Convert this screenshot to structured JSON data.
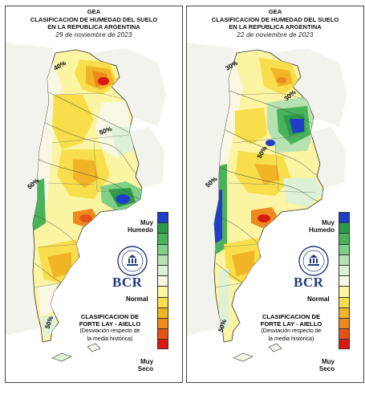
{
  "panels": [
    {
      "title": [
        "GEA",
        "CLASIFICACION DE HUMEDAD DEL SUELO",
        "EN LA REPUBLICA ARGENTINA"
      ],
      "date": "29 de noviembre de 2023",
      "contour_labels": [
        "40%",
        "50%",
        "50%",
        "50%"
      ]
    },
    {
      "title": [
        "GEA",
        "CLASIFICACION DE HUMEDAD DEL SUELO",
        "EN LA REPUBLICA ARGENTINA"
      ],
      "date": "22 de noviembre de 2023",
      "contour_labels": [
        "30%",
        "30%",
        "50%",
        "50%",
        "50%"
      ]
    }
  ],
  "legend": {
    "top_label": [
      "Muy",
      "Humedo"
    ],
    "middle_label": "Normal",
    "bottom_label": [
      "Muy",
      "Seco"
    ],
    "colors": [
      "#1f3ec9",
      "#2e9a47",
      "#49b35a",
      "#7fcf84",
      "#b5e2b0",
      "#ddf1d6",
      "#f7f7e3",
      "#fbf4a3",
      "#f7de4a",
      "#f2b427",
      "#ee8a1d",
      "#e55318",
      "#d81a10"
    ]
  },
  "brand": "BCR",
  "methodology": {
    "line1": "CLASIFICACION DE",
    "line2": "FORTE LAY - AIELLO",
    "note1": "(Desviación respecto de",
    "note2": "la media histórica)"
  },
  "colors": {
    "border": "#444444",
    "brand_blue": "#253a7a"
  }
}
